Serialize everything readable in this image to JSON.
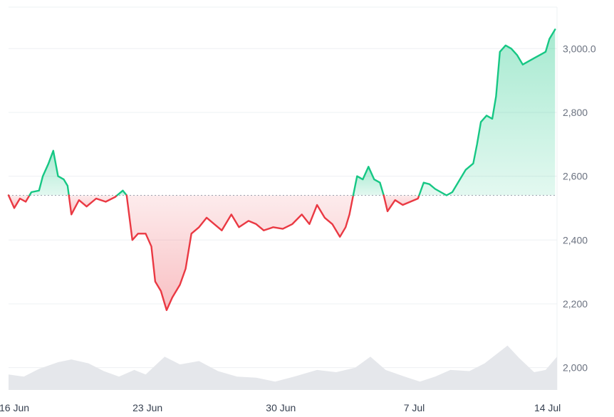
{
  "chart_data": {
    "type": "area",
    "baseline": 2540,
    "ylim": [
      1930,
      3130
    ],
    "y_ticks": [
      2000,
      2200,
      2400,
      2600,
      2800,
      3000
    ],
    "y_tick_labels": [
      "2,000",
      "2,200",
      "2,400",
      "2,600",
      "2,800",
      "3,000.0"
    ],
    "x_range": [
      0,
      28.8
    ],
    "x_ticks": [
      0.3,
      7.3,
      14.3,
      21.3,
      28.3
    ],
    "x_tick_labels": [
      "16 Jun",
      "23 Jun",
      "30 Jun",
      "7 Jul",
      "14 Jul"
    ],
    "colors": {
      "up_line": "#16c784",
      "down_line": "#ea3943",
      "up_fill": "#16c784",
      "down_fill": "#ea3943",
      "baseline": "#9ca3af",
      "grid": "#eef0f3",
      "volume": "#e5e7eb"
    },
    "price_points": [
      [
        0.0,
        2540
      ],
      [
        0.3,
        2500
      ],
      [
        0.6,
        2530
      ],
      [
        0.9,
        2520
      ],
      [
        1.2,
        2550
      ],
      [
        1.6,
        2555
      ],
      [
        1.8,
        2600
      ],
      [
        2.1,
        2640
      ],
      [
        2.35,
        2680
      ],
      [
        2.6,
        2600
      ],
      [
        2.9,
        2590
      ],
      [
        3.1,
        2570
      ],
      [
        3.3,
        2480
      ],
      [
        3.7,
        2525
      ],
      [
        4.1,
        2505
      ],
      [
        4.6,
        2530
      ],
      [
        5.1,
        2520
      ],
      [
        5.6,
        2535
      ],
      [
        6.0,
        2555
      ],
      [
        6.2,
        2540
      ],
      [
        6.5,
        2400
      ],
      [
        6.8,
        2420
      ],
      [
        7.2,
        2420
      ],
      [
        7.5,
        2380
      ],
      [
        7.7,
        2270
      ],
      [
        8.0,
        2240
      ],
      [
        8.3,
        2180
      ],
      [
        8.6,
        2220
      ],
      [
        9.0,
        2260
      ],
      [
        9.3,
        2310
      ],
      [
        9.6,
        2420
      ],
      [
        10.0,
        2440
      ],
      [
        10.4,
        2470
      ],
      [
        10.8,
        2450
      ],
      [
        11.2,
        2430
      ],
      [
        11.7,
        2480
      ],
      [
        12.1,
        2440
      ],
      [
        12.6,
        2460
      ],
      [
        13.0,
        2450
      ],
      [
        13.4,
        2430
      ],
      [
        13.9,
        2440
      ],
      [
        14.4,
        2435
      ],
      [
        14.9,
        2450
      ],
      [
        15.4,
        2480
      ],
      [
        15.8,
        2450
      ],
      [
        16.2,
        2510
      ],
      [
        16.6,
        2470
      ],
      [
        17.0,
        2450
      ],
      [
        17.4,
        2410
      ],
      [
        17.7,
        2440
      ],
      [
        17.9,
        2480
      ],
      [
        18.1,
        2540
      ],
      [
        18.3,
        2600
      ],
      [
        18.6,
        2590
      ],
      [
        18.9,
        2630
      ],
      [
        19.2,
        2590
      ],
      [
        19.5,
        2580
      ],
      [
        19.7,
        2540
      ],
      [
        19.9,
        2490
      ],
      [
        20.3,
        2525
      ],
      [
        20.7,
        2510
      ],
      [
        21.1,
        2520
      ],
      [
        21.5,
        2530
      ],
      [
        21.8,
        2580
      ],
      [
        22.1,
        2575
      ],
      [
        22.4,
        2560
      ],
      [
        22.7,
        2550
      ],
      [
        23.0,
        2540
      ],
      [
        23.3,
        2550
      ],
      [
        23.6,
        2580
      ],
      [
        24.0,
        2620
      ],
      [
        24.4,
        2640
      ],
      [
        24.6,
        2700
      ],
      [
        24.8,
        2770
      ],
      [
        25.1,
        2790
      ],
      [
        25.4,
        2780
      ],
      [
        25.6,
        2850
      ],
      [
        25.8,
        2990
      ],
      [
        26.1,
        3010
      ],
      [
        26.4,
        3000
      ],
      [
        26.7,
        2980
      ],
      [
        27.0,
        2950
      ],
      [
        27.3,
        2960
      ],
      [
        27.6,
        2970
      ],
      [
        27.9,
        2980
      ],
      [
        28.2,
        2990
      ],
      [
        28.4,
        3030
      ],
      [
        28.7,
        3060
      ]
    ],
    "volume_points": [
      [
        0,
        0.28
      ],
      [
        0.8,
        0.24
      ],
      [
        1.6,
        0.38
      ],
      [
        2.6,
        0.5
      ],
      [
        3.3,
        0.55
      ],
      [
        4.2,
        0.48
      ],
      [
        5.0,
        0.34
      ],
      [
        5.8,
        0.24
      ],
      [
        6.6,
        0.36
      ],
      [
        7.2,
        0.28
      ],
      [
        8.2,
        0.6
      ],
      [
        9.0,
        0.46
      ],
      [
        10.0,
        0.52
      ],
      [
        11.0,
        0.34
      ],
      [
        12.0,
        0.24
      ],
      [
        13.0,
        0.22
      ],
      [
        14.0,
        0.15
      ],
      [
        15.0,
        0.24
      ],
      [
        16.2,
        0.36
      ],
      [
        17.2,
        0.32
      ],
      [
        18.2,
        0.4
      ],
      [
        19.0,
        0.6
      ],
      [
        19.8,
        0.36
      ],
      [
        20.8,
        0.24
      ],
      [
        21.6,
        0.15
      ],
      [
        22.4,
        0.24
      ],
      [
        23.2,
        0.36
      ],
      [
        24.2,
        0.34
      ],
      [
        25.0,
        0.48
      ],
      [
        26.2,
        0.8
      ],
      [
        26.8,
        0.58
      ],
      [
        27.6,
        0.32
      ],
      [
        28.2,
        0.36
      ],
      [
        28.8,
        0.6
      ]
    ]
  }
}
